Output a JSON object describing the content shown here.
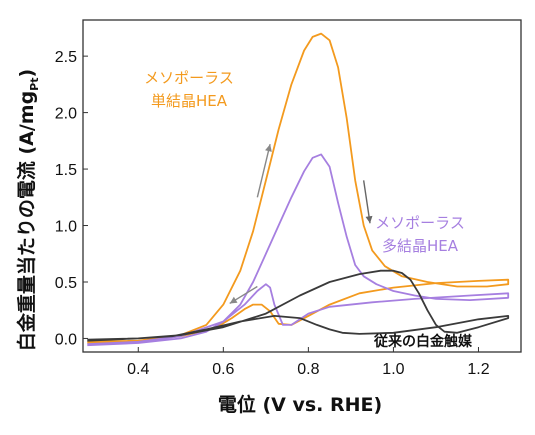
{
  "chart_data": {
    "type": "line",
    "xlabel": "電位 (V vs. RHE)",
    "ylabel_main": "白金重量当たりの電流 (A/mg",
    "ylabel_sub": "Pt",
    "ylabel_close": ")",
    "xlim": [
      0.27,
      1.3
    ],
    "ylim": [
      -0.12,
      2.82
    ],
    "xticks": [
      0.4,
      0.6,
      0.8,
      1.0,
      1.2
    ],
    "xtick_labels": [
      "0.4",
      "0.6",
      "0.8",
      "1.0",
      "1.2"
    ],
    "yticks": [
      0.0,
      0.5,
      1.0,
      1.5,
      2.0,
      2.5
    ],
    "ytick_labels": [
      "0.0",
      "0.5",
      "1.0",
      "1.5",
      "2.0",
      "2.5"
    ],
    "grid": false,
    "series": [
      {
        "name_line1": "メソポーラス",
        "name_line2": "単結晶HEA",
        "color": "#f39a1e",
        "x": [
          0.28,
          0.4,
          0.5,
          0.56,
          0.6,
          0.64,
          0.67,
          0.7,
          0.73,
          0.76,
          0.79,
          0.81,
          0.83,
          0.85,
          0.87,
          0.89,
          0.91,
          0.93,
          0.95,
          0.98,
          1.02,
          1.08,
          1.15,
          1.22,
          1.27,
          1.27,
          1.2,
          1.1,
          1.0,
          0.92,
          0.85,
          0.8,
          0.76,
          0.73,
          0.71,
          0.69,
          0.67,
          0.65,
          0.62,
          0.58,
          0.5,
          0.4,
          0.28
        ],
        "y": [
          -0.04,
          -0.02,
          0.03,
          0.12,
          0.3,
          0.6,
          0.95,
          1.4,
          1.85,
          2.25,
          2.55,
          2.67,
          2.7,
          2.64,
          2.4,
          1.95,
          1.4,
          1.0,
          0.78,
          0.64,
          0.55,
          0.5,
          0.46,
          0.46,
          0.48,
          0.52,
          0.51,
          0.49,
          0.45,
          0.4,
          0.3,
          0.2,
          0.12,
          0.13,
          0.24,
          0.3,
          0.3,
          0.26,
          0.18,
          0.09,
          0.02,
          -0.02,
          -0.03
        ]
      },
      {
        "name_line1": "メソポーラス",
        "name_line2": "多結晶HEA",
        "color": "#a67fe0",
        "x": [
          0.28,
          0.4,
          0.5,
          0.56,
          0.6,
          0.64,
          0.67,
          0.7,
          0.73,
          0.76,
          0.79,
          0.81,
          0.83,
          0.85,
          0.87,
          0.89,
          0.91,
          0.93,
          0.96,
          1.0,
          1.05,
          1.1,
          1.18,
          1.27,
          1.27,
          1.18,
          1.05,
          0.95,
          0.85,
          0.8,
          0.76,
          0.74,
          0.72,
          0.71,
          0.7,
          0.68,
          0.65,
          0.6,
          0.5,
          0.4,
          0.28
        ],
        "y": [
          -0.06,
          -0.04,
          0.0,
          0.06,
          0.15,
          0.3,
          0.5,
          0.75,
          1.0,
          1.25,
          1.48,
          1.6,
          1.63,
          1.52,
          1.2,
          0.9,
          0.65,
          0.55,
          0.48,
          0.42,
          0.38,
          0.35,
          0.34,
          0.36,
          0.4,
          0.38,
          0.35,
          0.32,
          0.28,
          0.22,
          0.12,
          0.12,
          0.3,
          0.45,
          0.48,
          0.42,
          0.3,
          0.15,
          0.02,
          -0.03,
          -0.05
        ]
      },
      {
        "name_line1": "従来の白金触媒",
        "name_line2": "",
        "color": "#3a3a3a",
        "x": [
          0.28,
          0.4,
          0.5,
          0.6,
          0.7,
          0.78,
          0.85,
          0.92,
          0.97,
          1.0,
          1.02,
          1.04,
          1.06,
          1.08,
          1.1,
          1.12,
          1.15,
          1.2,
          1.27,
          1.27,
          1.2,
          1.1,
          1.0,
          0.92,
          0.88,
          0.85,
          0.82,
          0.78,
          0.72,
          0.64,
          0.56,
          0.48,
          0.4,
          0.28
        ],
        "y": [
          -0.02,
          0.0,
          0.03,
          0.1,
          0.22,
          0.38,
          0.5,
          0.57,
          0.6,
          0.6,
          0.58,
          0.52,
          0.4,
          0.25,
          0.12,
          0.06,
          0.05,
          0.1,
          0.18,
          0.2,
          0.17,
          0.1,
          0.05,
          0.04,
          0.05,
          0.08,
          0.12,
          0.18,
          0.2,
          0.15,
          0.08,
          0.02,
          0.0,
          -0.01
        ]
      }
    ],
    "arrows": [
      {
        "from": [
          0.68,
          1.25
        ],
        "to": [
          0.71,
          1.72
        ],
        "color": "#888888"
      },
      {
        "from": [
          0.93,
          1.4
        ],
        "to": [
          0.945,
          1.02
        ],
        "color": "#666666"
      },
      {
        "from": [
          0.68,
          0.46
        ],
        "to": [
          0.615,
          0.31
        ],
        "color": "#888888"
      }
    ]
  }
}
